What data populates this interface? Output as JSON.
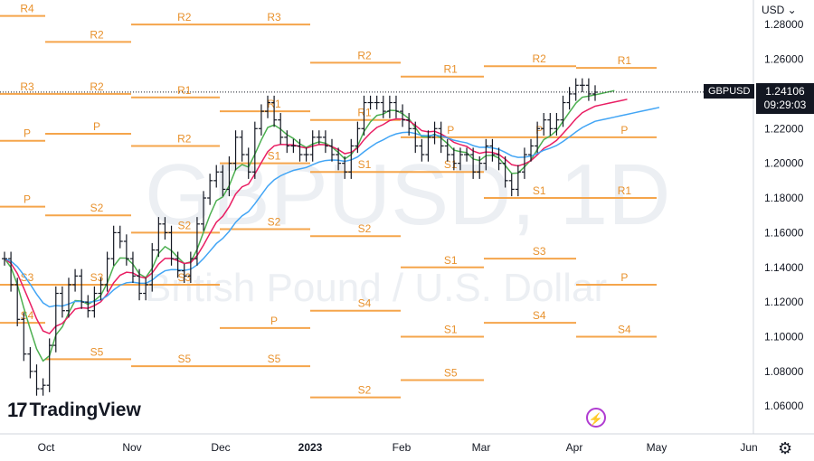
{
  "toolbar": {
    "currency": "USD ⌄"
  },
  "price_tag": {
    "symbol": "GBPUSD",
    "price": "1.24106",
    "time": "09:29:03"
  },
  "watermark": {
    "symbol": "GBPUSD, 1D",
    "name": "British Pound / U.S. Dollar"
  },
  "logo": {
    "mark": "17",
    "name": "TradingView"
  },
  "icons": {
    "settings": "gear-icon",
    "alert": "lightning-icon"
  },
  "colors": {
    "pivot": "#f5a54b",
    "candle": "#131722",
    "ma_fast": "#4caf50",
    "ma_mid": "#e91e63",
    "ma_slow": "#42a5f5",
    "axis_text": "#131722",
    "watermark": "#eceff3"
  },
  "chart_data": {
    "type": "candlestick",
    "symbol": "GBPUSD",
    "interval": "1D",
    "y_axis": {
      "ticks": [
        "1.28000",
        "1.26000",
        "1.24000",
        "1.22000",
        "1.20000",
        "1.18000",
        "1.16000",
        "1.14000",
        "1.12000",
        "1.10000",
        "1.08000",
        "1.06000"
      ],
      "range": [
        1.045,
        1.29
      ]
    },
    "x_axis": {
      "ticks": [
        "Oct",
        "Nov",
        "Dec",
        "2023",
        "Feb",
        "Mar",
        "Apr",
        "May",
        "Jun"
      ]
    },
    "last_price": 1.24106,
    "closes": [
      1.145,
      1.13,
      1.11,
      1.09,
      1.08,
      1.07,
      1.072,
      1.095,
      1.125,
      1.115,
      1.13,
      1.135,
      1.12,
      1.115,
      1.125,
      1.13,
      1.145,
      1.16,
      1.155,
      1.145,
      1.135,
      1.125,
      1.13,
      1.15,
      1.165,
      1.16,
      1.145,
      1.138,
      1.135,
      1.145,
      1.165,
      1.18,
      1.19,
      1.195,
      1.185,
      1.2,
      1.215,
      1.205,
      1.195,
      1.22,
      1.23,
      1.235,
      1.225,
      1.215,
      1.21,
      1.21,
      1.205,
      1.205,
      1.215,
      1.215,
      1.21,
      1.205,
      1.2,
      1.195,
      1.21,
      1.22,
      1.235,
      1.235,
      1.235,
      1.23,
      1.235,
      1.23,
      1.225,
      1.22,
      1.21,
      1.205,
      1.215,
      1.22,
      1.21,
      1.205,
      1.2,
      1.205,
      1.205,
      1.195,
      1.2,
      1.21,
      1.205,
      1.2,
      1.19,
      1.185,
      1.195,
      1.205,
      1.21,
      1.22,
      1.225,
      1.22,
      1.225,
      1.235,
      1.24,
      1.245,
      1.245,
      1.24,
      1.241
    ],
    "pivot_levels": [
      {
        "label": "R4",
        "value": 1.285
      },
      {
        "label": "R2",
        "value": 1.27
      },
      {
        "label": "R2",
        "value": 1.28
      },
      {
        "label": "R3",
        "value": 1.28
      },
      {
        "label": "R2",
        "value": 1.258
      },
      {
        "label": "R1",
        "value": 1.25
      },
      {
        "label": "R2",
        "value": 1.256
      },
      {
        "label": "R1",
        "value": 1.255
      },
      {
        "label": "R3",
        "value": 1.24
      },
      {
        "label": "R2",
        "value": 1.24
      },
      {
        "label": "R1",
        "value": 1.238
      },
      {
        "label": "R1",
        "value": 1.23
      },
      {
        "label": "R1",
        "value": 1.225
      },
      {
        "label": "P",
        "value": 1.215
      },
      {
        "label": "P",
        "value": 1.215
      },
      {
        "label": "P",
        "value": 1.215
      },
      {
        "label": "P",
        "value": 1.213
      },
      {
        "label": "P",
        "value": 1.217
      },
      {
        "label": "R2",
        "value": 1.21
      },
      {
        "label": "S1",
        "value": 1.2
      },
      {
        "label": "S1",
        "value": 1.195
      },
      {
        "label": "S1",
        "value": 1.195
      },
      {
        "label": "S1",
        "value": 1.18
      },
      {
        "label": "R1",
        "value": 1.18
      },
      {
        "label": "P",
        "value": 1.175
      },
      {
        "label": "S2",
        "value": 1.17
      },
      {
        "label": "S2",
        "value": 1.16
      },
      {
        "label": "S2",
        "value": 1.162
      },
      {
        "label": "S2",
        "value": 1.158
      },
      {
        "label": "S1",
        "value": 1.14
      },
      {
        "label": "S3",
        "value": 1.145
      },
      {
        "label": "P",
        "value": 1.13
      },
      {
        "label": "S3",
        "value": 1.13
      },
      {
        "label": "S3",
        "value": 1.13
      },
      {
        "label": "S3",
        "value": 1.13
      },
      {
        "label": "P",
        "value": 1.105
      },
      {
        "label": "S4",
        "value": 1.115
      },
      {
        "label": "S1",
        "value": 1.1
      },
      {
        "label": "S4",
        "value": 1.108
      },
      {
        "label": "S4",
        "value": 1.1
      },
      {
        "label": "S4",
        "value": 1.108
      },
      {
        "label": "S5",
        "value": 1.087
      },
      {
        "label": "S5",
        "value": 1.083
      },
      {
        "label": "S5",
        "value": 1.083
      },
      {
        "label": "S2",
        "value": 1.065
      },
      {
        "label": "S5",
        "value": 1.075
      }
    ]
  }
}
